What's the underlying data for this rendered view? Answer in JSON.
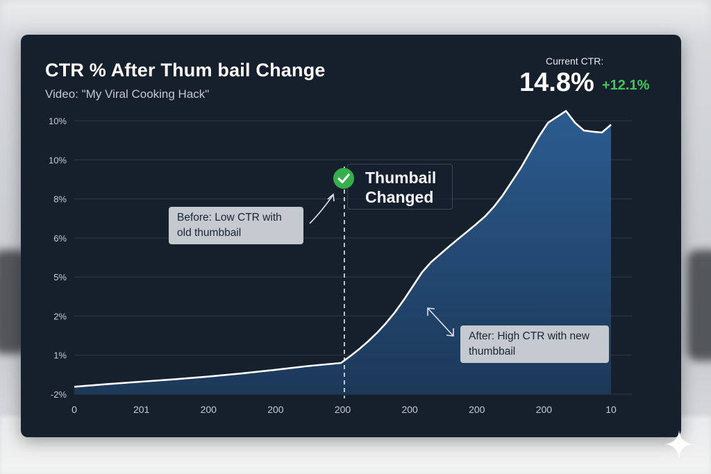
{
  "colors": {
    "panel": "#16202d",
    "area_fill": "#2a5b8e",
    "line": "#ffffff",
    "grid": "#2f3a47",
    "delta": "#3ec956",
    "callout_bg": "#c5cad0",
    "check": "#33b04c"
  },
  "header": {
    "title": "CTR % After Thum bail Change",
    "subtitle": "Video: \"My Viral Cooking Hack\""
  },
  "kpi": {
    "label": "Current CTR:",
    "value": "14.8%",
    "delta": "+12.1%"
  },
  "annotations": {
    "marker_label": "Thumbail Changed",
    "marker_icon": "check-circle-icon",
    "before_text": "Before: Low CTR with old thumbbail",
    "after_text": "After: High CTR with new thumbbail",
    "corner_icon": "sparkle-icon"
  },
  "chart_data": {
    "type": "area",
    "title": "CTR % After Thum bail Change",
    "xlabel": "",
    "ylabel": "",
    "grid": true,
    "y_tick_labels": [
      "-2%",
      "1%",
      "2%",
      "5%",
      "6%",
      "8%",
      "10%",
      "10%"
    ],
    "x_tick_labels": [
      "0",
      "201",
      "200",
      "200",
      "200",
      "200",
      "200",
      "200",
      "10"
    ],
    "note": "y tick labels are non-uniform as printed; values below are read in tick-index units (0 = '-2%' ... 7 = top '10%'), x in tick-index units (0 = '0' ... 8 = '10')",
    "series": [
      {
        "x": [
          0,
          1,
          2,
          3,
          4,
          5,
          6,
          7,
          8,
          8.27,
          8.54,
          8.81,
          9.08,
          9.35,
          9.62,
          9.89,
          10.16,
          10.43,
          10.7,
          10.97,
          11.24,
          11.51,
          11.78,
          12.05,
          12.32,
          12.59,
          12.86,
          13.13,
          13.4,
          13.67,
          13.94,
          14.21,
          14.48,
          14.75,
          15.02,
          15.29,
          15.56,
          15.83,
          16.1
        ],
        "y": [
          0.19,
          0.26,
          0.32,
          0.38,
          0.45,
          0.53,
          0.62,
          0.72,
          0.8,
          0.97,
          1.15,
          1.35,
          1.57,
          1.82,
          2.1,
          2.42,
          2.77,
          3.12,
          3.38,
          3.58,
          3.78,
          3.97,
          4.16,
          4.35,
          4.55,
          4.8,
          5.1,
          5.45,
          5.8,
          6.2,
          6.6,
          6.95,
          7.1,
          7.25,
          6.95,
          6.75,
          6.72,
          6.7,
          6.9
        ]
      }
    ],
    "change_point_x": 8.1,
    "ylim": [
      0,
      7
    ],
    "xlim": [
      0,
      16.1
    ]
  }
}
